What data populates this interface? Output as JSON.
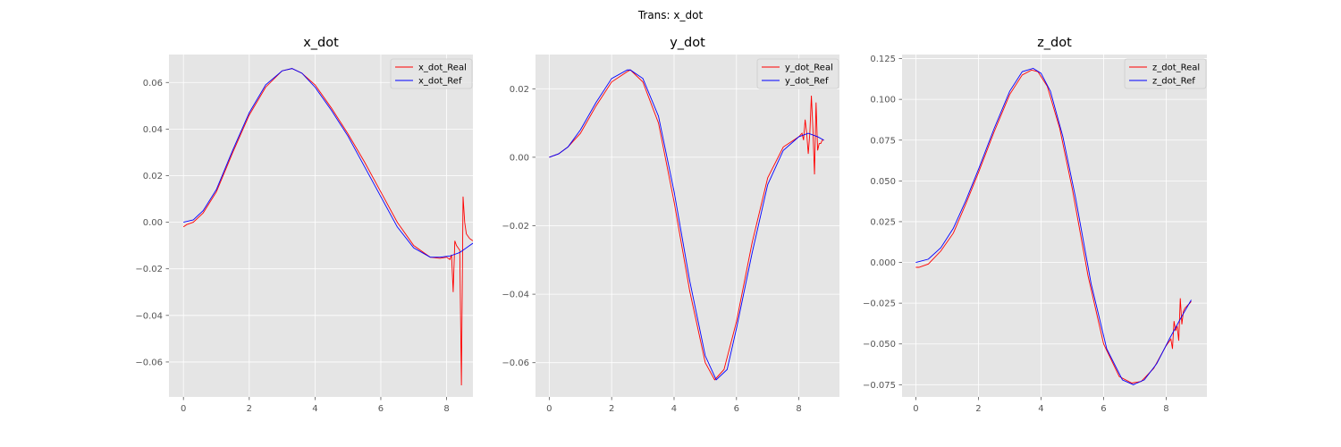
{
  "figure": {
    "suptitle": "Trans: x_dot",
    "background": "#ffffff",
    "axes_background": "#e5e5e5",
    "grid_color": "#ffffff",
    "tick_color": "#555555"
  },
  "chart_data": [
    {
      "type": "line",
      "title": "x_dot",
      "xlabel": "",
      "ylabel": "",
      "xlim": [
        -0.44,
        8.8
      ],
      "ylim": [
        -0.075,
        0.072
      ],
      "xticks": [
        0,
        2,
        4,
        6,
        8
      ],
      "yticks": [
        -0.06,
        -0.04,
        -0.02,
        0.0,
        0.02,
        0.04,
        0.06
      ],
      "ytick_labels": [
        "−0.06",
        "−0.04",
        "−0.02",
        "0.00",
        "0.02",
        "0.04",
        "0.06"
      ],
      "grid": true,
      "legend": "top-right",
      "series": [
        {
          "name": "x_dot_Real",
          "color": "#ff0000",
          "x": [
            0,
            0.1,
            0.3,
            0.6,
            1.0,
            1.5,
            2.0,
            2.5,
            3.0,
            3.3,
            3.6,
            4.0,
            4.5,
            5.0,
            5.5,
            6.0,
            6.5,
            7.0,
            7.5,
            7.8,
            8.0,
            8.1,
            8.15,
            8.2,
            8.25,
            8.3,
            8.35,
            8.4,
            8.45,
            8.5,
            8.55,
            8.6,
            8.7,
            8.8
          ],
          "y": [
            -0.002,
            -0.001,
            0.0,
            0.004,
            0.013,
            0.03,
            0.046,
            0.058,
            0.065,
            0.066,
            0.064,
            0.059,
            0.049,
            0.038,
            0.026,
            0.013,
            0.0,
            -0.01,
            -0.015,
            -0.0155,
            -0.015,
            -0.016,
            -0.014,
            -0.03,
            -0.008,
            -0.01,
            -0.011,
            -0.012,
            -0.07,
            0.011,
            0.0,
            -0.005,
            -0.007,
            -0.008
          ]
        },
        {
          "name": "x_dot_Ref",
          "color": "#0000ff",
          "x": [
            0,
            0.3,
            0.6,
            1.0,
            1.5,
            2.0,
            2.5,
            3.0,
            3.3,
            3.6,
            4.0,
            4.5,
            5.0,
            5.5,
            6.0,
            6.5,
            7.0,
            7.5,
            7.8,
            8.1,
            8.4,
            8.7,
            8.8
          ],
          "y": [
            0.0,
            0.001,
            0.005,
            0.014,
            0.031,
            0.047,
            0.059,
            0.065,
            0.066,
            0.064,
            0.058,
            0.048,
            0.037,
            0.024,
            0.011,
            -0.002,
            -0.011,
            -0.015,
            -0.015,
            -0.0145,
            -0.013,
            -0.01,
            -0.009
          ]
        }
      ]
    },
    {
      "type": "line",
      "title": "y_dot",
      "xlabel": "",
      "ylabel": "",
      "xlim": [
        -0.44,
        9.3
      ],
      "ylim": [
        -0.07,
        0.03
      ],
      "xticks": [
        0,
        2,
        4,
        6,
        8
      ],
      "yticks": [
        -0.06,
        -0.04,
        -0.02,
        0.0,
        0.02
      ],
      "ytick_labels": [
        "−0.06",
        "−0.04",
        "−0.02",
        "0.00",
        "0.02"
      ],
      "grid": true,
      "legend": "top-right",
      "series": [
        {
          "name": "y_dot_Real",
          "color": "#ff0000",
          "x": [
            0,
            0.3,
            0.6,
            1.0,
            1.5,
            2.0,
            2.5,
            2.6,
            3.0,
            3.5,
            4.0,
            4.5,
            5.0,
            5.3,
            5.6,
            6.0,
            6.5,
            7.0,
            7.5,
            8.0,
            8.1,
            8.15,
            8.2,
            8.25,
            8.3,
            8.35,
            8.4,
            8.45,
            8.5,
            8.55,
            8.6,
            8.65,
            8.7,
            8.75,
            8.8
          ],
          "y": [
            0.0,
            0.001,
            0.003,
            0.007,
            0.015,
            0.022,
            0.025,
            0.0255,
            0.022,
            0.01,
            -0.013,
            -0.039,
            -0.06,
            -0.065,
            -0.062,
            -0.048,
            -0.025,
            -0.006,
            0.003,
            0.006,
            0.007,
            0.005,
            0.011,
            0.007,
            0.001,
            0.007,
            0.018,
            0.008,
            -0.005,
            0.016,
            0.002,
            0.004,
            0.004,
            0.005,
            0.005
          ]
        },
        {
          "name": "y_dot_Ref",
          "color": "#0000ff",
          "x": [
            0,
            0.3,
            0.6,
            1.0,
            1.5,
            2.0,
            2.5,
            2.6,
            3.0,
            3.5,
            4.0,
            4.5,
            5.0,
            5.35,
            5.7,
            6.0,
            6.5,
            7.0,
            7.5,
            8.0,
            8.3,
            8.6,
            8.8
          ],
          "y": [
            0.0,
            0.001,
            0.003,
            0.008,
            0.016,
            0.023,
            0.0255,
            0.0255,
            0.023,
            0.012,
            -0.01,
            -0.036,
            -0.058,
            -0.065,
            -0.062,
            -0.05,
            -0.028,
            -0.008,
            0.002,
            0.006,
            0.007,
            0.006,
            0.005
          ]
        }
      ]
    },
    {
      "type": "line",
      "title": "z_dot",
      "xlabel": "",
      "ylabel": "",
      "xlim": [
        -0.44,
        9.3
      ],
      "ylim": [
        -0.0825,
        0.1275
      ],
      "xticks": [
        0,
        2,
        4,
        6,
        8
      ],
      "yticks": [
        -0.075,
        -0.05,
        -0.025,
        0.0,
        0.025,
        0.05,
        0.075,
        0.1,
        0.125
      ],
      "ytick_labels": [
        "−0.075",
        "−0.050",
        "−0.025",
        "0.000",
        "0.025",
        "0.050",
        "0.075",
        "0.100",
        "0.125"
      ],
      "grid": true,
      "legend": "top-right",
      "series": [
        {
          "name": "z_dot_Real",
          "color": "#ff0000",
          "x": [
            0,
            0.1,
            0.4,
            0.8,
            1.2,
            1.6,
            2.0,
            2.5,
            3.0,
            3.4,
            3.7,
            3.9,
            4.2,
            4.6,
            5.0,
            5.5,
            6.0,
            6.5,
            6.9,
            7.2,
            7.6,
            8.0,
            8.15,
            8.2,
            8.25,
            8.3,
            8.35,
            8.4,
            8.45,
            8.5,
            8.55,
            8.6,
            8.65,
            8.7,
            8.75,
            8.8
          ],
          "y": [
            -0.003,
            -0.003,
            -0.001,
            0.007,
            0.018,
            0.036,
            0.055,
            0.08,
            0.103,
            0.115,
            0.118,
            0.117,
            0.108,
            0.082,
            0.045,
            -0.008,
            -0.05,
            -0.07,
            -0.074,
            -0.073,
            -0.065,
            -0.051,
            -0.047,
            -0.053,
            -0.036,
            -0.042,
            -0.039,
            -0.048,
            -0.022,
            -0.038,
            -0.03,
            -0.028,
            -0.027,
            -0.026,
            -0.025,
            -0.024
          ]
        },
        {
          "name": "z_dot_Ref",
          "color": "#0000ff",
          "x": [
            0,
            0.4,
            0.8,
            1.2,
            1.6,
            2.0,
            2.5,
            3.0,
            3.4,
            3.75,
            4.0,
            4.3,
            4.7,
            5.1,
            5.6,
            6.1,
            6.6,
            6.95,
            7.3,
            7.7,
            8.1,
            8.5,
            8.8
          ],
          "y": [
            0.0,
            0.002,
            0.009,
            0.021,
            0.038,
            0.057,
            0.082,
            0.105,
            0.117,
            0.119,
            0.116,
            0.105,
            0.077,
            0.04,
            -0.013,
            -0.053,
            -0.072,
            -0.075,
            -0.072,
            -0.062,
            -0.047,
            -0.033,
            -0.023
          ]
        }
      ]
    }
  ]
}
